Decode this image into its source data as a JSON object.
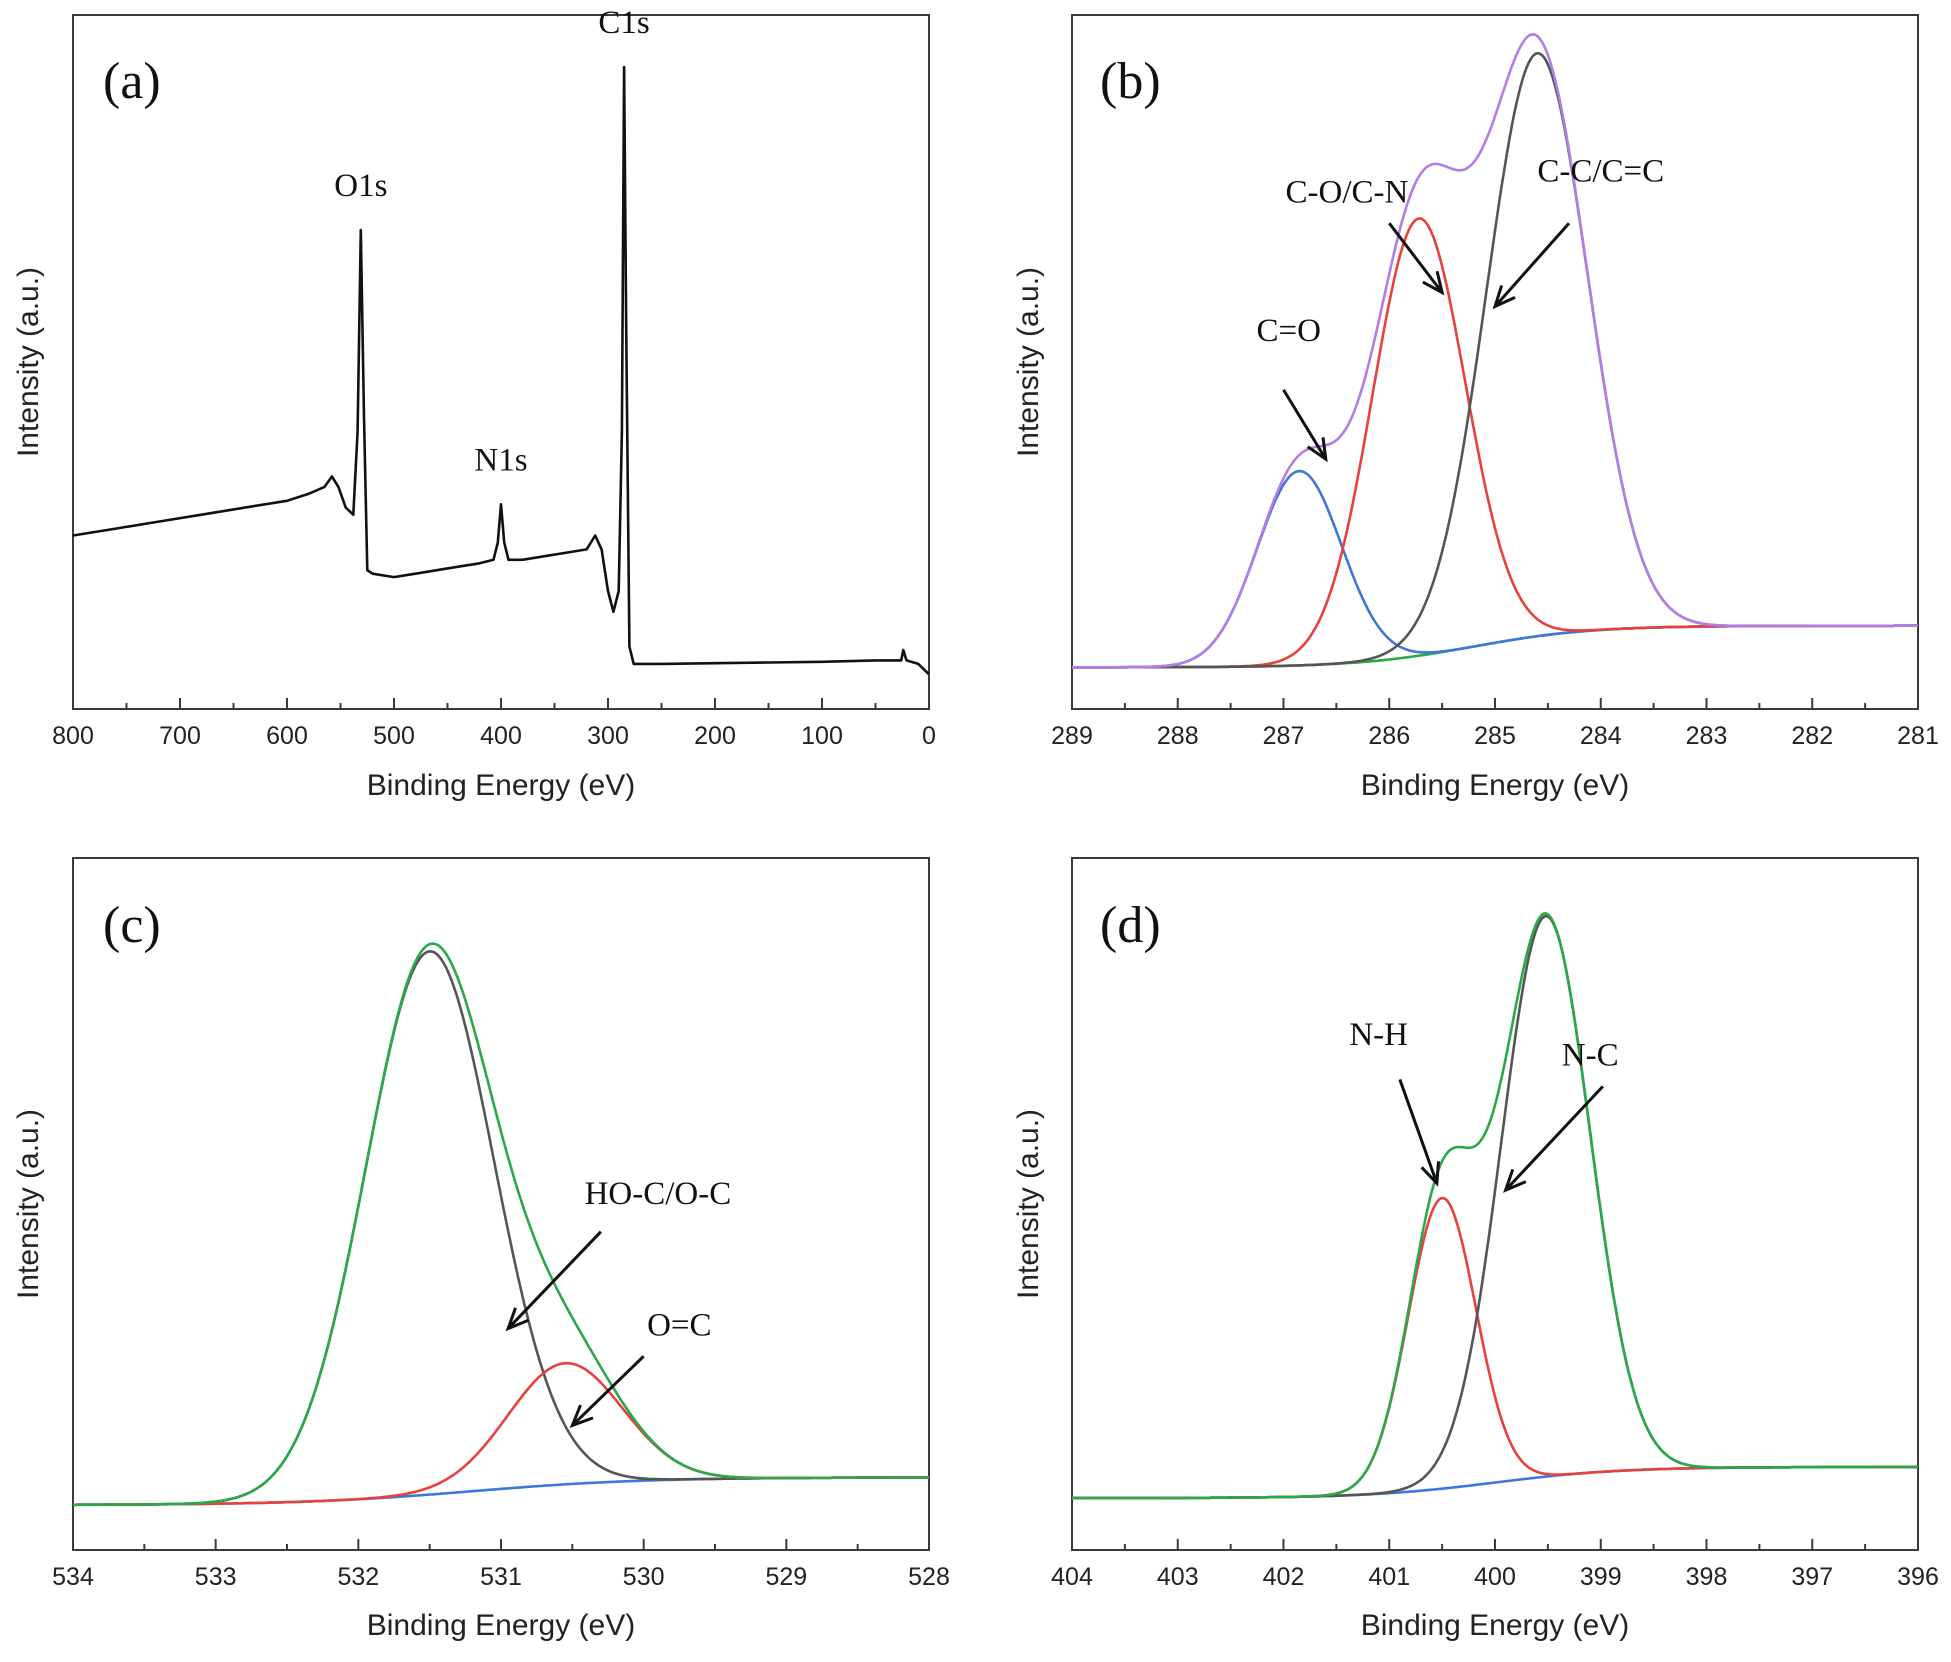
{
  "chart_data": [
    {
      "type": "line",
      "panel_label": "(a)",
      "xlabel": "Binding Energy (eV)",
      "ylabel": "Intensity (a.u.)",
      "xlim": [
        800,
        0
      ],
      "x_reversed": true,
      "ylim": [
        0,
        1
      ],
      "x_ticks": [
        800,
        700,
        600,
        500,
        400,
        300,
        200,
        100,
        0
      ],
      "y_ticks_shown": false,
      "grid": false,
      "series": [
        {
          "color": "#111111",
          "points": [
            [
              800,
              0.25
            ],
            [
              760,
              0.26
            ],
            [
              720,
              0.27
            ],
            [
              680,
              0.28
            ],
            [
              640,
              0.29
            ],
            [
              600,
              0.3
            ],
            [
              580,
              0.31
            ],
            [
              565,
              0.32
            ],
            [
              558,
              0.335
            ],
            [
              552,
              0.32
            ],
            [
              545,
              0.29
            ],
            [
              538,
              0.28
            ],
            [
              534,
              0.4
            ],
            [
              531,
              0.69
            ],
            [
              528,
              0.42
            ],
            [
              525,
              0.2
            ],
            [
              520,
              0.195
            ],
            [
              500,
              0.19
            ],
            [
              480,
              0.195
            ],
            [
              460,
              0.2
            ],
            [
              440,
              0.205
            ],
            [
              420,
              0.21
            ],
            [
              407,
              0.215
            ],
            [
              403,
              0.24
            ],
            [
              400,
              0.295
            ],
            [
              397,
              0.24
            ],
            [
              393,
              0.215
            ],
            [
              380,
              0.215
            ],
            [
              360,
              0.22
            ],
            [
              340,
              0.225
            ],
            [
              320,
              0.23
            ],
            [
              312,
              0.25
            ],
            [
              306,
              0.23
            ],
            [
              300,
              0.17
            ],
            [
              295,
              0.14
            ],
            [
              290,
              0.17
            ],
            [
              287,
              0.4
            ],
            [
              285,
              0.925
            ],
            [
              283,
              0.55
            ],
            [
              280,
              0.09
            ],
            [
              276,
              0.065
            ],
            [
              250,
              0.065
            ],
            [
              200,
              0.066
            ],
            [
              150,
              0.067
            ],
            [
              100,
              0.068
            ],
            [
              50,
              0.07
            ],
            [
              26,
              0.07
            ],
            [
              24,
              0.085
            ],
            [
              21,
              0.07
            ],
            [
              10,
              0.065
            ],
            [
              0,
              0.05
            ]
          ]
        }
      ],
      "annotations": [
        {
          "text": "O1s",
          "x": 531,
          "y": 0.69
        },
        {
          "text": "N1s",
          "x": 400,
          "y": 0.295
        },
        {
          "text": "C1s",
          "x": 285,
          "y": 0.925
        }
      ]
    },
    {
      "type": "line",
      "panel_label": "(b)",
      "xlabel": "Binding Energy (eV)",
      "ylabel": "Intensity (a.u.)",
      "xlim": [
        289,
        281
      ],
      "x_reversed": true,
      "ylim": [
        0,
        1
      ],
      "x_ticks": [
        289,
        288,
        287,
        286,
        285,
        284,
        283,
        282,
        281
      ],
      "y_ticks_shown": false,
      "grid": false,
      "baseline": {
        "color": "#2aa84a",
        "start": [
          289,
          0.12
        ],
        "mid": 285.2,
        "end": [
          281,
          0.06
        ],
        "width": 0.55
      },
      "components": [
        {
          "label": "C=O",
          "center": 286.85,
          "height": 0.28,
          "sigma": 0.4,
          "color": "#3b78d8"
        },
        {
          "label": "C-O/C-N",
          "center": 285.72,
          "height": 0.63,
          "sigma": 0.44,
          "color": "#e8413c"
        },
        {
          "label": "C-C/C=C",
          "center": 284.6,
          "height": 0.84,
          "sigma": 0.48,
          "color": "#555555"
        }
      ],
      "envelope": {
        "color": "#b57ce6"
      },
      "annotations": [
        {
          "text": "C=O",
          "text_x": 286.95,
          "text_y": 0.53,
          "arrow_from": [
            287.0,
            0.46
          ],
          "arrow_to": [
            286.6,
            0.36
          ]
        },
        {
          "text": "C-O/C-N",
          "text_x": 286.4,
          "text_y": 0.73,
          "arrow_from": [
            286.0,
            0.7
          ],
          "arrow_to": [
            285.5,
            0.6
          ]
        },
        {
          "text": "C-C/C=C",
          "text_x": 284.0,
          "text_y": 0.76,
          "arrow_from": [
            284.3,
            0.7
          ],
          "arrow_to": [
            285.0,
            0.58
          ]
        }
      ]
    },
    {
      "type": "line",
      "panel_label": "(c)",
      "xlabel": "Binding Energy (eV)",
      "ylabel": "Intensity (a.u.)",
      "xlim": [
        534,
        528
      ],
      "x_reversed": true,
      "ylim": [
        0,
        1
      ],
      "x_ticks": [
        534,
        533,
        532,
        531,
        530,
        529,
        528
      ],
      "y_ticks_shown": false,
      "grid": false,
      "baseline": {
        "color": "#3b78d8",
        "start": [
          534,
          0.105
        ],
        "mid": 531.2,
        "end": [
          528.1,
          0.065
        ],
        "width": 0.6
      },
      "components": [
        {
          "label": "HO-C/O-C",
          "center": 531.5,
          "height": 0.785,
          "sigma": 0.45,
          "color": "#555555"
        },
        {
          "label": "O=C",
          "center": 530.55,
          "height": 0.175,
          "sigma": 0.4,
          "color": "#e8413c"
        }
      ],
      "envelope": {
        "color": "#2aa84a"
      },
      "annotations": [
        {
          "text": "HO-C/O-C",
          "text_x": 529.9,
          "text_y": 0.5,
          "arrow_from": [
            530.3,
            0.46
          ],
          "arrow_to": [
            530.95,
            0.32
          ]
        },
        {
          "text": "O=C",
          "text_x": 529.75,
          "text_y": 0.31,
          "arrow_from": [
            530.0,
            0.28
          ],
          "arrow_to": [
            530.5,
            0.18
          ]
        }
      ]
    },
    {
      "type": "line",
      "panel_label": "(d)",
      "xlabel": "Binding Energy (eV)",
      "ylabel": "Intensity (a.u.)",
      "xlim": [
        404,
        396
      ],
      "x_reversed": true,
      "ylim": [
        0,
        1
      ],
      "x_ticks": [
        404,
        403,
        402,
        401,
        400,
        399,
        398,
        397,
        396
      ],
      "y_ticks_shown": false,
      "grid": false,
      "baseline": {
        "color": "#3b78d8",
        "start": [
          404,
          0.12
        ],
        "mid": 400.0,
        "end": [
          396,
          0.075
        ],
        "width": 0.6
      },
      "components": [
        {
          "label": "N-H",
          "center": 400.5,
          "height": 0.42,
          "sigma": 0.32,
          "color": "#e8413c"
        },
        {
          "label": "N-C",
          "center": 399.52,
          "height": 0.81,
          "sigma": 0.42,
          "color": "#555555"
        }
      ],
      "envelope": {
        "color": "#2aa84a"
      },
      "annotations": [
        {
          "text": "N-H",
          "text_x": 401.1,
          "text_y": 0.73,
          "arrow_from": [
            400.9,
            0.68
          ],
          "arrow_to": [
            400.55,
            0.53
          ]
        },
        {
          "text": "N-C",
          "text_x": 399.1,
          "text_y": 0.7,
          "arrow_from": [
            398.98,
            0.67
          ],
          "arrow_to": [
            399.9,
            0.52
          ]
        }
      ]
    }
  ]
}
